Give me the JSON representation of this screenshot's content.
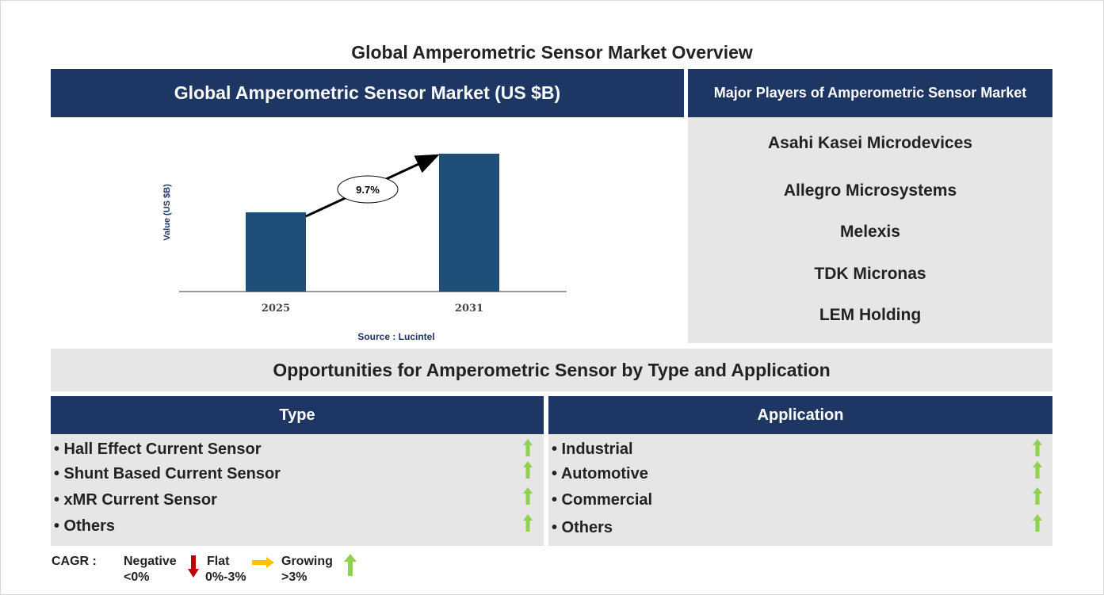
{
  "page_title": "Global Amperometric Sensor Market Overview",
  "market_header": "Global Amperometric Sensor Market (US $B)",
  "players_header": "Major Players of Amperometric Sensor Market",
  "players": [
    "Asahi Kasei Microdevices",
    "Allegro Microsystems",
    "Melexis",
    "TDK Micronas",
    "LEM Holding"
  ],
  "chart_data": {
    "type": "bar",
    "categories": [
      "2025",
      "2031"
    ],
    "values": [
      1.0,
      1.74
    ],
    "ylabel": "Value (US $B)",
    "cagr_label": "9.7%",
    "source": "Source : Lucintel",
    "bar_color": "#1f4e79",
    "ylim": [
      0,
      1.8
    ]
  },
  "opportunities_header": "Opportunities for Amperometric Sensor by Type and Application",
  "type_column": {
    "header": "Type",
    "items": [
      "• Hall Effect Current Sensor",
      "• Shunt Based Current Sensor",
      "• xMR Current Sensor",
      "• Others"
    ],
    "trend": "growing"
  },
  "application_column": {
    "header": "Application",
    "items": [
      "• Industrial",
      "• Automotive",
      "• Commercial",
      "• Others"
    ],
    "trend": "growing"
  },
  "legend": {
    "cagr_label": "CAGR  :",
    "negative_label": "Negative",
    "negative_range": "<0%",
    "flat_label": "Flat",
    "flat_range": "0%-3%",
    "growing_label": "Growing",
    "growing_range": ">3%",
    "negative_color": "#c00000",
    "flat_color": "#ffc000",
    "growing_color": "#92d050"
  },
  "colors": {
    "navy": "#1e3664",
    "panel_gray": "#e6e6e6"
  }
}
